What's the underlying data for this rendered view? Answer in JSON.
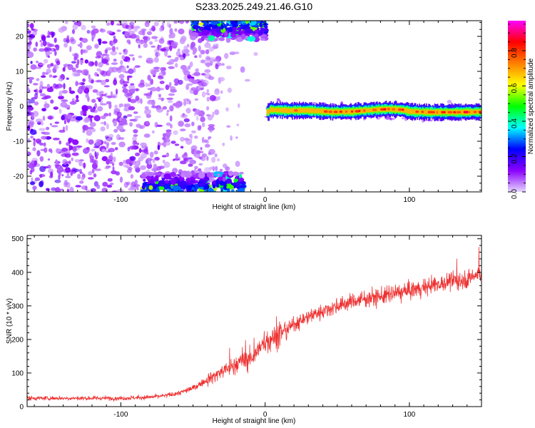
{
  "title": "S233.2025.249.21.46.G10",
  "chart_data": [
    {
      "type": "heatmap",
      "xlabel": "Height of straight line (km)",
      "ylabel": "Frequency (Hz)",
      "xlim": [
        -165,
        150
      ],
      "ylim": [
        -24.5,
        24.5
      ],
      "x_ticks": [
        -100,
        0,
        100
      ],
      "y_ticks": [
        -20,
        -10,
        0,
        10,
        20
      ],
      "colorbar": {
        "label": "Normalized spectral amplitude",
        "range": [
          0,
          0.97
        ],
        "ticks": [
          0.0,
          0.2,
          0.4,
          0.6,
          0.8
        ],
        "colormap": [
          "#e6d7ff",
          "#8a00ff",
          "#0000ff",
          "#00ffff",
          "#00ff00",
          "#ffff00",
          "#ff8000",
          "#ff0000",
          "#ff00ff"
        ]
      },
      "features": {
        "noise_region_x": [
          -165,
          -40
        ],
        "upper_band": {
          "x": [
            -50,
            1
          ],
          "y": [
            19,
            24.5
          ]
        },
        "lower_band": {
          "x": [
            -85,
            -15
          ],
          "y": [
            -24.5,
            -19
          ]
        },
        "signal_track": {
          "x": [
            1,
            150
          ],
          "points": [
            {
              "x": 3,
              "y": -1.0
            },
            {
              "x": 15,
              "y": -1.2
            },
            {
              "x": 30,
              "y": -1.2
            },
            {
              "x": 45,
              "y": -1.6
            },
            {
              "x": 60,
              "y": -1.5
            },
            {
              "x": 75,
              "y": -1.0
            },
            {
              "x": 85,
              "y": -0.8
            },
            {
              "x": 95,
              "y": -1.0
            },
            {
              "x": 100,
              "y": -1.5
            },
            {
              "x": 115,
              "y": -1.7
            },
            {
              "x": 130,
              "y": -1.7
            },
            {
              "x": 150,
              "y": -1.6
            }
          ]
        }
      }
    },
    {
      "type": "line",
      "xlabel": "Height of straight line (km)",
      "ylabel": "SNR (10 * v/v)",
      "xlim": [
        -165,
        150
      ],
      "ylim": [
        0,
        510
      ],
      "x_ticks": [
        -100,
        0,
        100
      ],
      "y_ticks": [
        0,
        100,
        200,
        300,
        400,
        500
      ],
      "color": "#ee3030",
      "series": [
        {
          "x": [
            -165,
            -140,
            -120,
            -100,
            -80,
            -70,
            -60,
            -50,
            -40,
            -30,
            -20,
            -10,
            0,
            5,
            10,
            20,
            30,
            40,
            50,
            60,
            70,
            80,
            90,
            100,
            110,
            120,
            130,
            140,
            150
          ],
          "values": [
            25,
            25,
            25,
            25,
            28,
            32,
            40,
            55,
            80,
            105,
            125,
            145,
            190,
            205,
            215,
            245,
            268,
            285,
            300,
            313,
            322,
            328,
            337,
            345,
            355,
            365,
            372,
            380,
            400
          ]
        }
      ]
    }
  ]
}
